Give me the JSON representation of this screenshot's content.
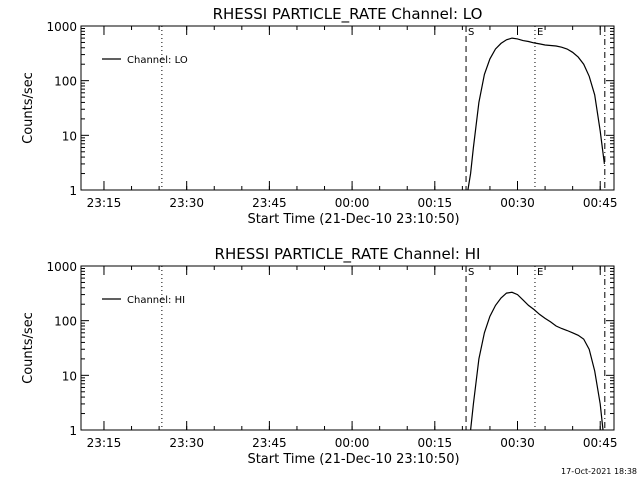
{
  "chart_data": [
    {
      "type": "line",
      "title": "RHESSI PARTICLE_RATE Channel: LO",
      "xlabel": "Start Time (21-Dec-10 23:10:50)",
      "ylabel": "Counts/sec",
      "y_scale": "log",
      "ylim": [
        1,
        1000
      ],
      "xlim": [
        "23:10:50",
        "00:47:30"
      ],
      "x_tick_labels": [
        "23:15",
        "23:30",
        "23:45",
        "00:00",
        "00:15",
        "00:30",
        "00:45"
      ],
      "y_tick_labels": [
        "1",
        "10",
        "100",
        "1000"
      ],
      "legend": {
        "position": "top-left",
        "entries": [
          "Channel: LO"
        ]
      },
      "grid": false,
      "markers": [
        {
          "label": "",
          "time": "23:25:30",
          "style": "dotted"
        },
        {
          "label": "S",
          "time": "00:20:40",
          "style": "dashed"
        },
        {
          "label": "E",
          "time": "00:33:10",
          "style": "dotted"
        },
        {
          "label": "",
          "time": "00:45:50",
          "style": "dash-dot"
        }
      ],
      "series": [
        {
          "name": "Channel: LO",
          "x": [
            "00:21:00",
            "00:21:30",
            "00:22:00",
            "00:23:00",
            "00:24:00",
            "00:25:00",
            "00:26:00",
            "00:27:00",
            "00:28:00",
            "00:29:00",
            "00:30:00",
            "00:31:00",
            "00:32:00",
            "00:33:00",
            "00:34:00",
            "00:35:00",
            "00:36:00",
            "00:37:00",
            "00:38:00",
            "00:39:00",
            "00:40:00",
            "00:41:00",
            "00:42:00",
            "00:43:00",
            "00:44:00",
            "00:45:00",
            "00:45:45"
          ],
          "values": [
            1,
            2,
            6,
            40,
            130,
            250,
            380,
            480,
            560,
            600,
            580,
            540,
            520,
            490,
            470,
            450,
            440,
            430,
            410,
            380,
            330,
            270,
            200,
            120,
            55,
            12,
            3
          ]
        }
      ]
    },
    {
      "type": "line",
      "title": "RHESSI PARTICLE_RATE Channel: HI",
      "xlabel": "Start Time (21-Dec-10 23:10:50)",
      "ylabel": "Counts/sec",
      "y_scale": "log",
      "ylim": [
        1,
        1000
      ],
      "xlim": [
        "23:10:50",
        "00:47:30"
      ],
      "x_tick_labels": [
        "23:15",
        "23:30",
        "23:45",
        "00:00",
        "00:15",
        "00:30",
        "00:45"
      ],
      "y_tick_labels": [
        "1",
        "10",
        "100",
        "1000"
      ],
      "legend": {
        "position": "top-left",
        "entries": [
          "Channel: HI"
        ]
      },
      "grid": false,
      "markers": [
        {
          "label": "",
          "time": "23:25:30",
          "style": "dotted"
        },
        {
          "label": "S",
          "time": "00:20:40",
          "style": "dashed"
        },
        {
          "label": "E",
          "time": "00:33:10",
          "style": "dotted"
        },
        {
          "label": "",
          "time": "00:45:50",
          "style": "dash-dot"
        }
      ],
      "series": [
        {
          "name": "Channel: HI",
          "x": [
            "00:21:30",
            "00:22:00",
            "00:23:00",
            "00:24:00",
            "00:25:00",
            "00:26:00",
            "00:27:00",
            "00:28:00",
            "00:29:00",
            "00:30:00",
            "00:31:00",
            "00:32:00",
            "00:33:00",
            "00:34:00",
            "00:35:00",
            "00:36:00",
            "00:37:00",
            "00:38:00",
            "00:39:00",
            "00:40:00",
            "00:41:00",
            "00:42:00",
            "00:43:00",
            "00:44:00",
            "00:45:00",
            "00:45:30"
          ],
          "values": [
            1,
            3,
            20,
            60,
            120,
            190,
            260,
            320,
            330,
            300,
            240,
            190,
            160,
            130,
            110,
            95,
            80,
            72,
            66,
            60,
            54,
            46,
            30,
            12,
            3,
            1
          ]
        }
      ]
    }
  ],
  "footer": {
    "timestamp": "17-Oct-2021 18:38"
  }
}
